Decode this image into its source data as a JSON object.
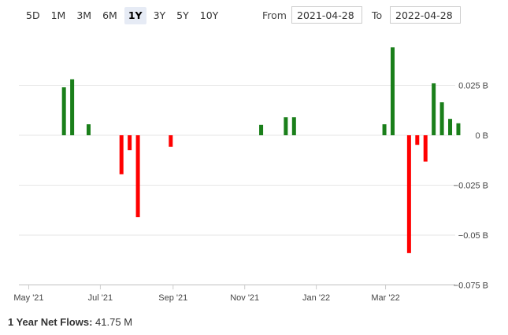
{
  "toolbar": {
    "ranges": [
      "5D",
      "1M",
      "3M",
      "6M",
      "1Y",
      "3Y",
      "5Y",
      "10Y"
    ],
    "active_range": "1Y",
    "from_label": "From",
    "from_value": "2021-04-28",
    "to_label": "To",
    "to_value": "2022-04-28"
  },
  "chart_data": {
    "type": "bar",
    "ylabel_unit": "B",
    "ylim": [
      -0.08,
      0.05
    ],
    "yticks": [
      {
        "value": 0.025,
        "label": "0.025 B"
      },
      {
        "value": 0,
        "label": "0 B"
      },
      {
        "value": -0.025,
        "label": "−0.025 B"
      },
      {
        "value": -0.05,
        "label": "−0.05 B"
      },
      {
        "value": -0.075,
        "label": "−0.075 B"
      }
    ],
    "xticks": [
      "May '21",
      "Jul '21",
      "Sep '21",
      "Nov '21",
      "Jan '22",
      "Mar '22"
    ],
    "xtick_dates": [
      "2021-05-01",
      "2021-07-01",
      "2021-09-01",
      "2021-11-01",
      "2022-01-01",
      "2022-03-01"
    ],
    "x_range": [
      "2021-04-28",
      "2022-04-28"
    ],
    "grid": true,
    "colors": {
      "positive": "#1a7f1a",
      "negative": "#ff0000"
    },
    "bars": [
      {
        "date": "2021-05-31",
        "value": 0.024
      },
      {
        "date": "2021-06-07",
        "value": 0.028
      },
      {
        "date": "2021-06-21",
        "value": 0.0055
      },
      {
        "date": "2021-07-19",
        "value": -0.0195
      },
      {
        "date": "2021-07-26",
        "value": -0.0075
      },
      {
        "date": "2021-08-02",
        "value": -0.041
      },
      {
        "date": "2021-08-30",
        "value": -0.0058
      },
      {
        "date": "2021-11-15",
        "value": 0.0052
      },
      {
        "date": "2021-12-06",
        "value": 0.009
      },
      {
        "date": "2021-12-13",
        "value": 0.009
      },
      {
        "date": "2022-02-28",
        "value": 0.0055
      },
      {
        "date": "2022-03-07",
        "value": 0.044
      },
      {
        "date": "2022-03-21",
        "value": -0.059
      },
      {
        "date": "2022-03-28",
        "value": -0.0048
      },
      {
        "date": "2022-04-04",
        "value": -0.0132
      },
      {
        "date": "2022-04-11",
        "value": 0.026
      },
      {
        "date": "2022-04-18",
        "value": 0.0165
      },
      {
        "date": "2022-04-25",
        "value": 0.0082
      },
      {
        "date": "2022-05-02",
        "value": 0.006
      }
    ]
  },
  "summary": {
    "label": "1 Year Net Flows:",
    "value": "41.75 M"
  }
}
